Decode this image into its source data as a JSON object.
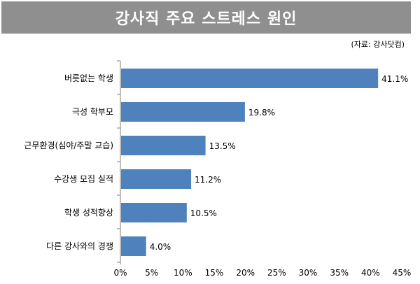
{
  "header": {
    "title": "강사직 주요 스트레스 원인",
    "source": "(자료: 강사닷컴)"
  },
  "colors": {
    "title_background": "#8f8f8f",
    "bar": "#4f81bd",
    "axis": "#7f7f7f"
  },
  "chart_data": {
    "type": "bar",
    "orientation": "horizontal",
    "title": "강사직 주요 스트레스 원인",
    "categories": [
      "버릇없는 학생",
      "극성 학부모",
      "근무환경(심야/주말 교습)",
      "수강생 모집 실적",
      "학생 성적향상",
      "다른 강사와의 경쟁"
    ],
    "values": [
      41.1,
      19.8,
      13.5,
      11.2,
      10.5,
      4.0
    ],
    "value_labels": [
      "41.1%",
      "19.8%",
      "13.5%",
      "11.2%",
      "10.5%",
      "4.0%"
    ],
    "xlim": [
      0,
      45
    ],
    "xticks": [
      0,
      5,
      10,
      15,
      20,
      25,
      30,
      35,
      40,
      45
    ],
    "xtick_labels": [
      "0%",
      "5%",
      "10%",
      "15%",
      "20%",
      "25%",
      "30%",
      "35%",
      "40%",
      "45%"
    ],
    "grid": false
  }
}
